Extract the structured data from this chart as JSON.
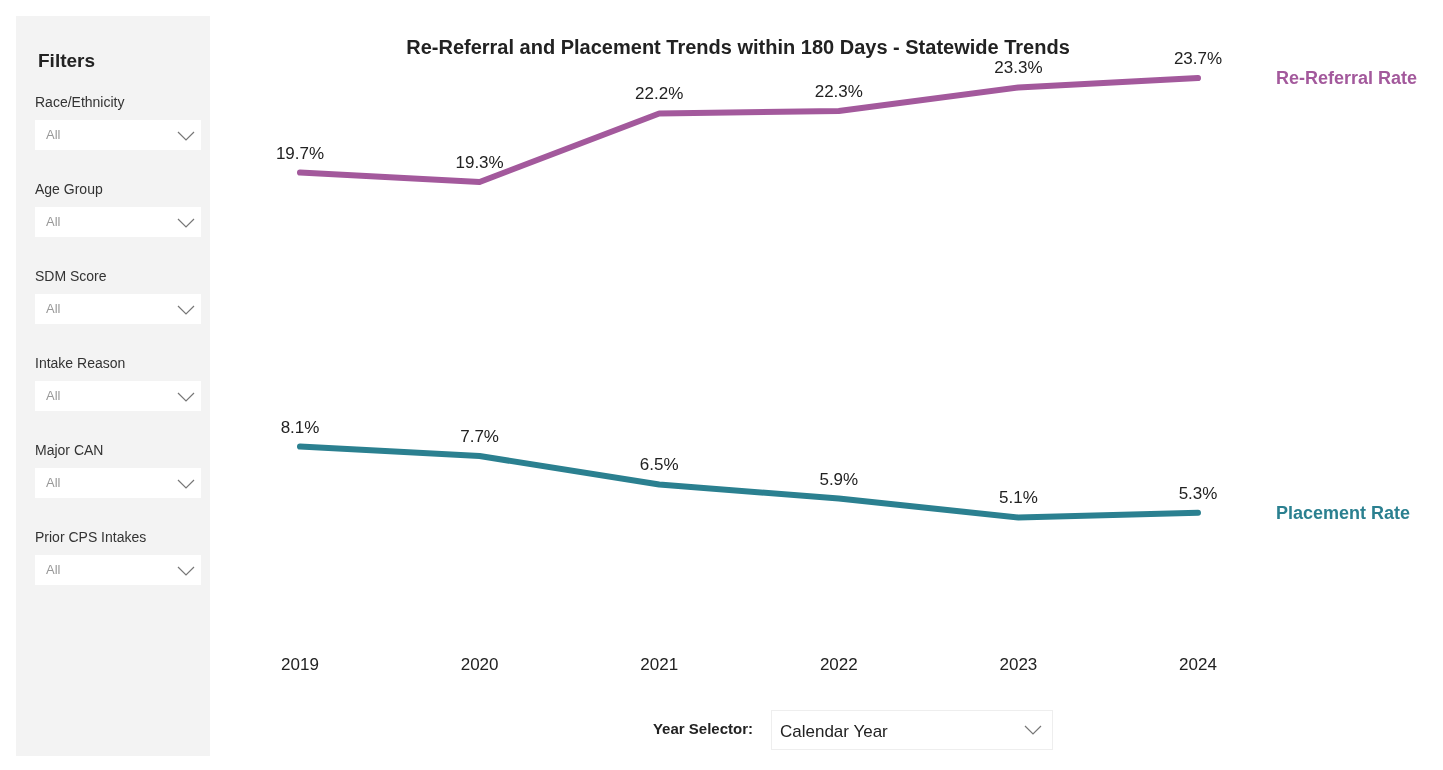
{
  "chart_data": [
    {
      "type": "other",
      "title": "Filters",
      "annotations": [
        "Race/Ethnicity",
        "All",
        "Age Group",
        "All",
        "SDM Score",
        "All",
        "Intake Reason",
        "All",
        "Major CAN",
        "All",
        "Prior CPS Intakes",
        "All"
      ]
    },
    {
      "type": "line",
      "title": "Re-Referral and Placement Trends within 180 Days - Statewide Trends",
      "categories": [
        "2019",
        "2020",
        "2021",
        "2022",
        "2023",
        "2024"
      ],
      "series": [
        {
          "name": "Re-Referral Rate",
          "color": "#a3599c",
          "values": [
            19.7,
            19.3,
            22.2,
            22.3,
            23.3,
            23.7
          ],
          "value_labels": [
            "19.7%",
            "19.3%",
            "22.2%",
            "22.3%",
            "23.3%",
            "23.7%"
          ]
        },
        {
          "name": "Placement Rate",
          "color": "#2b8090",
          "values": [
            8.1,
            7.7,
            6.5,
            5.9,
            5.1,
            5.3
          ],
          "value_labels": [
            "8.1%",
            "7.7%",
            "6.5%",
            "5.9%",
            "5.1%",
            "5.3%"
          ]
        }
      ],
      "marker": "none",
      "grid": false,
      "legend": false,
      "annotations": [
        "Year Selector:",
        "Calendar Year"
      ]
    }
  ]
}
